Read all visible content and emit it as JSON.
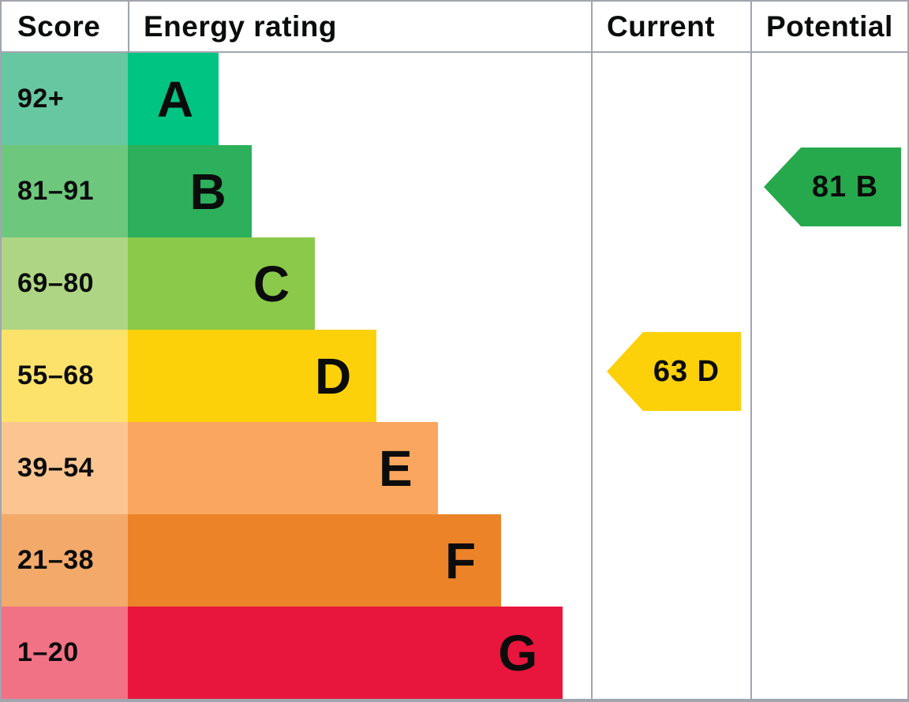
{
  "header": {
    "score": "Score",
    "energy_rating": "Energy rating",
    "current": "Current",
    "potential": "Potential"
  },
  "chart_data": {
    "type": "bar",
    "subtype": "epc-energy-rating-bands",
    "orientation": "horizontal",
    "columns": [
      "Score",
      "Energy rating",
      "Current",
      "Potential"
    ],
    "bands": [
      {
        "letter": "A",
        "score_range": "92+",
        "bar_color": "#00c482",
        "score_cell_color": "#66c7a0",
        "bar_width_pct": 19.6
      },
      {
        "letter": "B",
        "score_range": "81–91",
        "bar_color": "#2cb05b",
        "score_cell_color": "#6dc87d",
        "bar_width_pct": 26.7
      },
      {
        "letter": "C",
        "score_range": "69–80",
        "bar_color": "#8bc94a",
        "score_cell_color": "#aed584",
        "bar_width_pct": 40.4
      },
      {
        "letter": "D",
        "score_range": "55–68",
        "bar_color": "#fdd10a",
        "score_cell_color": "#fce26b",
        "bar_width_pct": 53.7
      },
      {
        "letter": "E",
        "score_range": "39–54",
        "bar_color": "#faa65f",
        "score_cell_color": "#fbc591",
        "bar_width_pct": 66.9
      },
      {
        "letter": "F",
        "score_range": "21–38",
        "bar_color": "#ec8329",
        "score_cell_color": "#f2a96a",
        "bar_width_pct": 80.6
      },
      {
        "letter": "G",
        "score_range": "1–20",
        "bar_color": "#e8153c",
        "score_cell_color": "#f17185",
        "bar_width_pct": 93.9
      }
    ],
    "current": {
      "label": "63 D",
      "value": 63,
      "band": "D",
      "color": "#fdd10a"
    },
    "potential": {
      "label": "81 B",
      "value": 81,
      "band": "B",
      "color": "#26a94c"
    }
  }
}
